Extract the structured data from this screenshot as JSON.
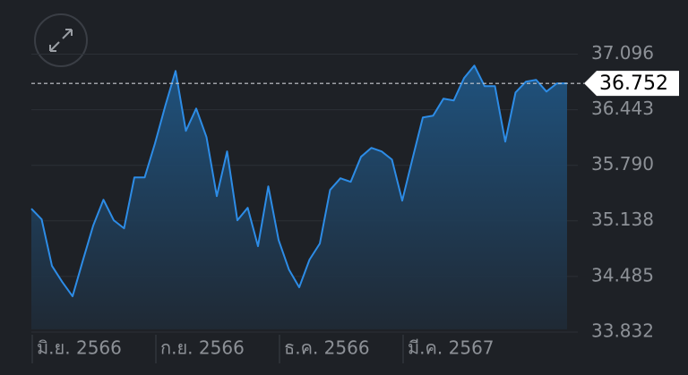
{
  "chart_data": {
    "type": "area",
    "categories": [
      "มิ.ย. 2566",
      null,
      null,
      null,
      null,
      null,
      null,
      null,
      null,
      null,
      null,
      null,
      "ก.ย. 2566",
      null,
      null,
      null,
      null,
      null,
      null,
      null,
      null,
      null,
      null,
      null,
      "ธ.ค. 2566",
      null,
      null,
      null,
      null,
      null,
      null,
      null,
      null,
      null,
      null,
      null,
      "มี.ค. 2567",
      null,
      null,
      null,
      null,
      null,
      null,
      null,
      null,
      null,
      null,
      null,
      null,
      null,
      null,
      null,
      null
    ],
    "values": [
      35.281,
      35.155,
      34.609,
      34.42,
      34.252,
      34.672,
      35.081,
      35.386,
      35.144,
      35.05,
      35.648,
      35.648,
      36.047,
      36.488,
      36.898,
      36.194,
      36.457,
      36.121,
      35.428,
      35.953,
      35.144,
      35.291,
      34.84,
      35.543,
      34.913,
      34.567,
      34.357,
      34.682,
      34.871,
      35.501,
      35.638,
      35.596,
      35.89,
      35.995,
      35.953,
      35.858,
      35.375,
      35.869,
      36.352,
      36.373,
      36.572,
      36.551,
      36.814,
      36.961,
      36.719,
      36.719,
      36.068,
      36.646,
      36.772,
      36.793,
      36.656,
      36.751,
      36.752
    ],
    "color": "#2d8ce6",
    "last_value": 36.752,
    "ylim": [
      33.832,
      37.5
    ],
    "yticks": [
      33.832,
      34.485,
      35.138,
      {
        "value": 35.79,
        "label": "35.790"
      },
      36.443,
      37.096
    ],
    "grid": true
  }
}
